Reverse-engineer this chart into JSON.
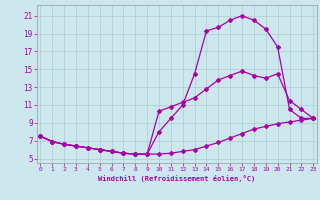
{
  "title": "",
  "xlabel": "Windchill (Refroidissement éolien,°C)",
  "background_color": "#cce8ee",
  "grid_color": "#aacccc",
  "line_color": "#aa00aa",
  "x_ticks": [
    0,
    1,
    2,
    3,
    4,
    5,
    6,
    7,
    8,
    9,
    10,
    11,
    12,
    13,
    14,
    15,
    16,
    17,
    18,
    19,
    20,
    21,
    22,
    23
  ],
  "y_ticks": [
    5,
    7,
    9,
    11,
    13,
    15,
    17,
    19,
    21
  ],
  "xlim": [
    -0.3,
    23.3
  ],
  "ylim": [
    4.5,
    22.2
  ],
  "curve1_x": [
    0,
    1,
    2,
    3,
    4,
    5,
    6,
    7,
    8,
    9,
    10,
    11,
    12,
    13,
    14,
    15,
    16,
    17,
    18,
    19,
    20,
    21,
    22,
    23
  ],
  "curve1_y": [
    7.5,
    6.9,
    6.6,
    6.4,
    6.2,
    6.0,
    5.8,
    5.6,
    5.5,
    5.5,
    5.5,
    5.6,
    5.8,
    6.0,
    6.4,
    6.8,
    7.3,
    7.8,
    8.3,
    8.6,
    8.9,
    9.1,
    9.3,
    9.5
  ],
  "curve2_x": [
    0,
    1,
    2,
    3,
    4,
    5,
    6,
    7,
    8,
    9,
    10,
    11,
    12,
    13,
    14,
    15,
    16,
    17,
    18,
    19,
    20,
    21,
    22,
    23
  ],
  "curve2_y": [
    7.5,
    6.9,
    6.6,
    6.4,
    6.2,
    6.0,
    5.8,
    5.6,
    5.5,
    5.5,
    8.0,
    9.5,
    11.0,
    14.5,
    19.3,
    19.7,
    20.5,
    21.0,
    20.5,
    19.5,
    17.5,
    10.5,
    9.5,
    9.5
  ],
  "curve3_x": [
    0,
    1,
    2,
    3,
    4,
    5,
    6,
    7,
    8,
    9,
    10,
    11,
    12,
    13,
    14,
    15,
    16,
    17,
    18,
    19,
    20,
    21,
    22,
    23
  ],
  "curve3_y": [
    7.5,
    6.9,
    6.6,
    6.4,
    6.2,
    6.0,
    5.8,
    5.6,
    5.5,
    5.5,
    10.3,
    10.8,
    11.3,
    11.8,
    12.8,
    13.8,
    14.3,
    14.8,
    14.3,
    14.0,
    14.5,
    11.5,
    10.5,
    9.5
  ]
}
